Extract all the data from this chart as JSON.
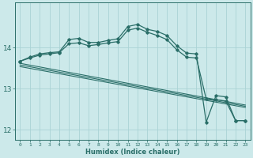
{
  "xlabel": "Humidex (Indice chaleur)",
  "xlim": [
    -0.5,
    23.5
  ],
  "ylim": [
    11.75,
    15.1
  ],
  "background_color": "#cce9ea",
  "grid_color": "#aad3d5",
  "line_color": "#2a6e68",
  "yticks": [
    12,
    13,
    14
  ],
  "xticks": [
    0,
    1,
    2,
    3,
    4,
    5,
    6,
    7,
    8,
    9,
    10,
    11,
    12,
    13,
    14,
    15,
    16,
    17,
    18,
    19,
    20,
    21,
    22,
    23
  ],
  "curve1": {
    "x": [
      0,
      1,
      2,
      3,
      4,
      5,
      6,
      7,
      8,
      9,
      10,
      11,
      12,
      13,
      14,
      15,
      16,
      17,
      18,
      19,
      20,
      21,
      22,
      23
    ],
    "y": [
      13.67,
      13.77,
      13.85,
      13.88,
      13.9,
      14.2,
      14.23,
      14.13,
      14.13,
      14.18,
      14.22,
      14.52,
      14.57,
      14.45,
      14.4,
      14.3,
      14.05,
      13.87,
      13.85,
      12.18,
      12.83,
      12.8,
      12.22,
      12.22
    ]
  },
  "curve2": {
    "x": [
      0,
      1,
      2,
      3,
      4,
      5,
      6,
      7,
      8,
      9,
      10,
      11,
      12,
      13,
      14,
      15,
      16,
      17,
      18,
      19,
      20,
      21,
      22,
      23
    ],
    "y": [
      13.67,
      13.75,
      13.82,
      13.85,
      13.88,
      14.1,
      14.12,
      14.05,
      14.08,
      14.12,
      14.15,
      14.43,
      14.48,
      14.38,
      14.3,
      14.2,
      13.95,
      13.77,
      13.75,
      12.75,
      12.73,
      12.7,
      12.22,
      12.22
    ]
  },
  "straight_line1": {
    "x": [
      0,
      18,
      19,
      20,
      21,
      22,
      23
    ],
    "y": [
      13.62,
      12.72,
      12.72,
      12.7,
      12.68,
      12.22,
      12.22
    ]
  },
  "straight_line2": {
    "x": [
      0,
      23
    ],
    "y": [
      13.58,
      12.6
    ]
  },
  "straight_line3": {
    "x": [
      0,
      23
    ],
    "y": [
      13.55,
      12.57
    ]
  }
}
